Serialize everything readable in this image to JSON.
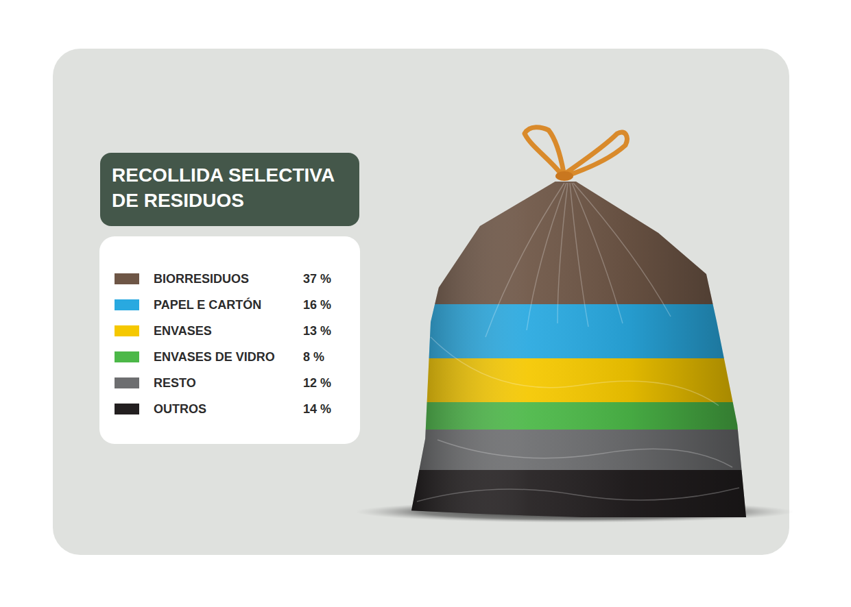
{
  "chart_data": {
    "type": "bar",
    "title": "RECOLLIDA SELECTIVA DE RESIDUOS",
    "categories": [
      null
    ],
    "series": [
      {
        "name": "BIORRESIDUOS",
        "color": "#6e5646",
        "values": [
          37
        ],
        "value_labels": [
          "37 %"
        ]
      },
      {
        "name": "PAPEL E CARTÓN",
        "color": "#29a9e0",
        "values": [
          16
        ],
        "value_labels": [
          "16 %"
        ]
      },
      {
        "name": "ENVASES",
        "color": "#f5c800",
        "values": [
          13
        ],
        "value_labels": [
          "13 %"
        ]
      },
      {
        "name": "ENVASES DE VIDRO",
        "color": "#4cb848",
        "values": [
          8
        ],
        "value_labels": [
          "8 %"
        ]
      },
      {
        "name": "RESTO",
        "color": "#6d6e70",
        "values": [
          12
        ],
        "value_labels": [
          "12 %"
        ]
      },
      {
        "name": "OUTROS",
        "color": "#231f20",
        "values": [
          14
        ],
        "value_labels": [
          "14 %"
        ]
      }
    ],
    "stacked": true,
    "ylim": [
      0,
      100
    ],
    "tick_labels": false
  }
}
